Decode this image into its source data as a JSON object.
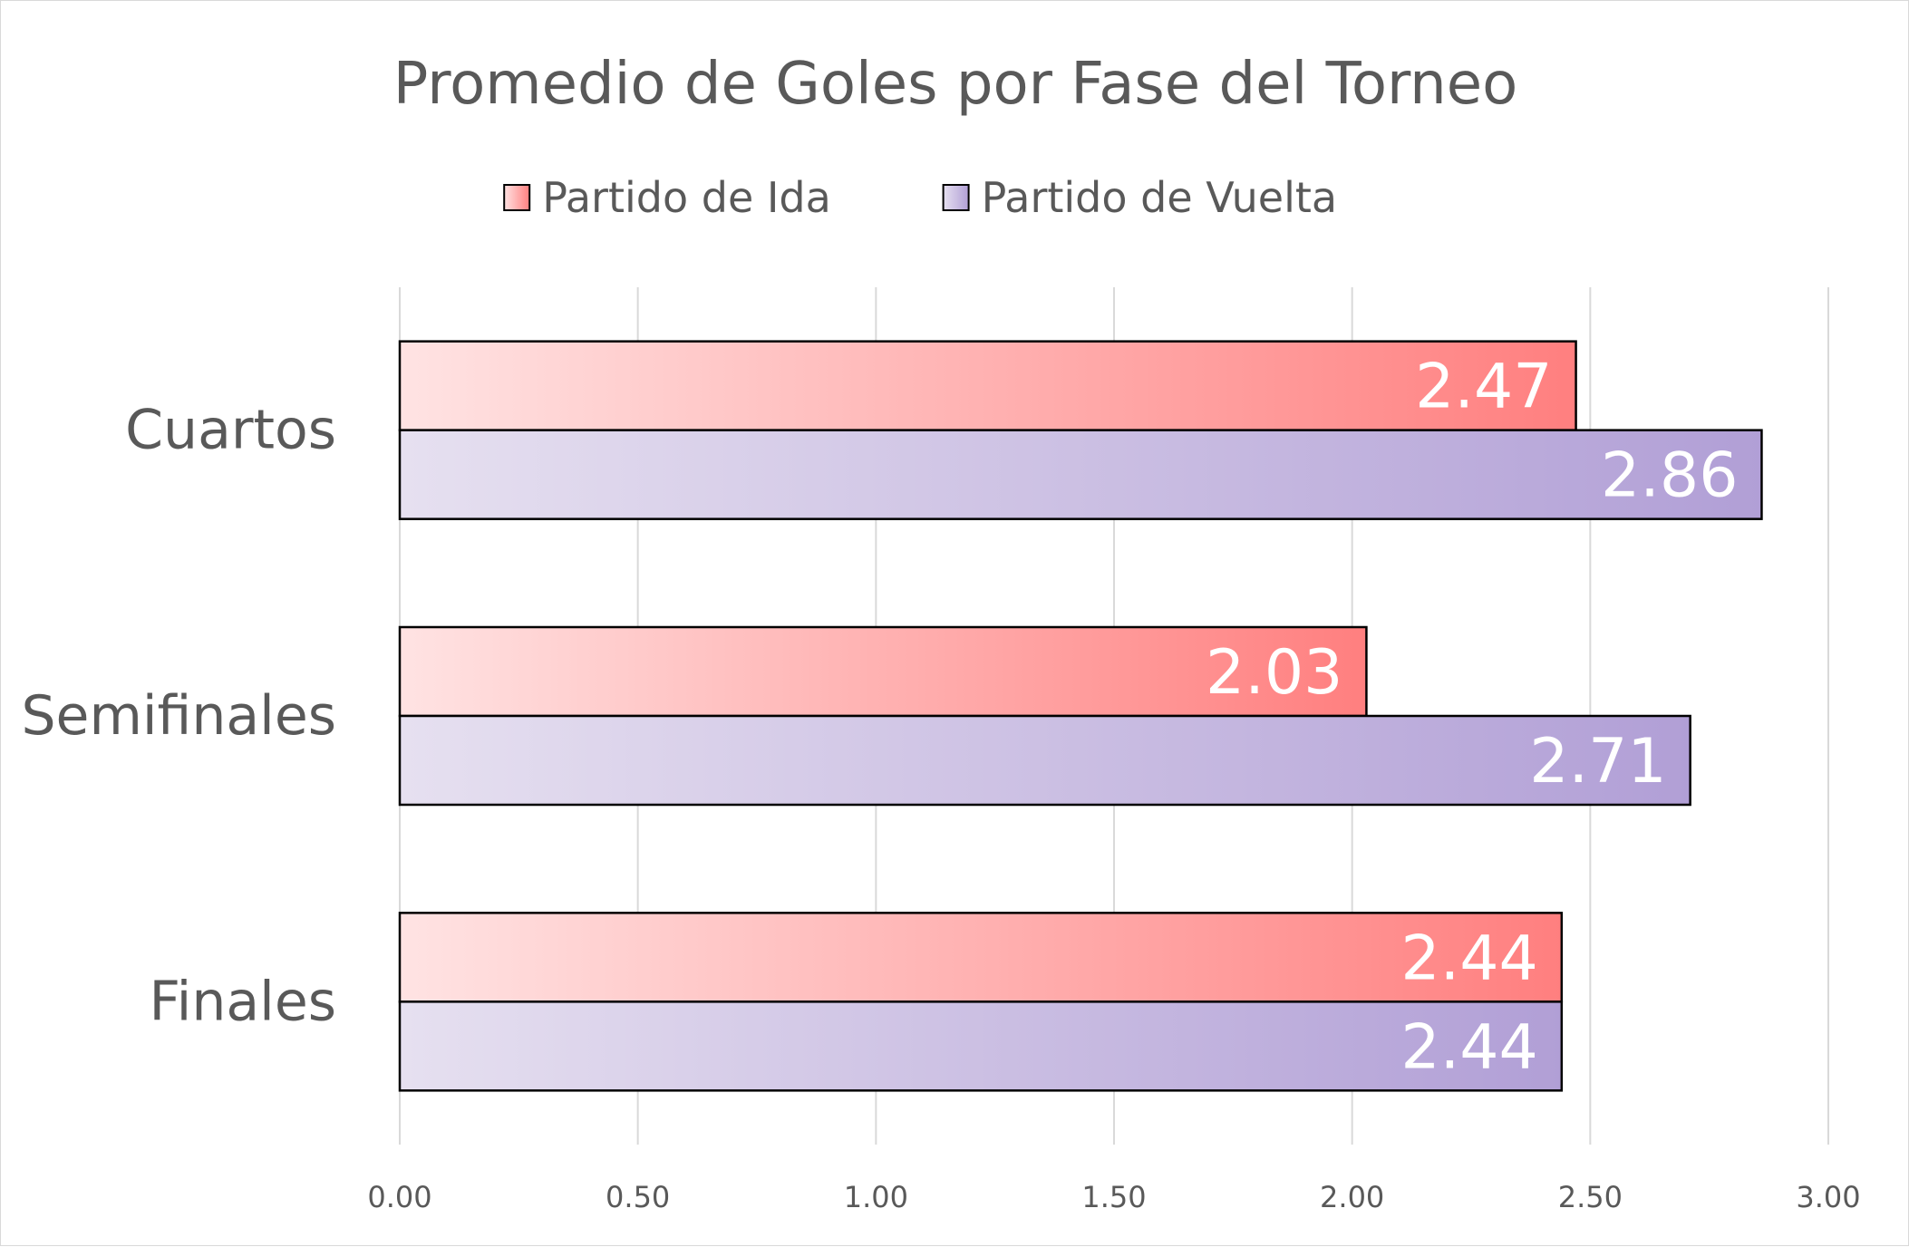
{
  "chart_data": {
    "type": "bar",
    "orientation": "horizontal",
    "title": "Promedio de Goles por Fase del Torneo",
    "categories": [
      "Cuartos",
      "Semifinales",
      "Finales"
    ],
    "series": [
      {
        "name": "Partido de Ida",
        "values": [
          2.47,
          2.03,
          2.44
        ],
        "color_start": "#ffe3e3",
        "color_end": "#ff7f7f",
        "legend_color": "#ff9d9d"
      },
      {
        "name": "Partido de Vuelta",
        "values": [
          2.86,
          2.71,
          2.44
        ],
        "color_start": "#e6e0f0",
        "color_end": "#b19fd6",
        "legend_color": "#c4b6e2"
      }
    ],
    "xlim": [
      0,
      3
    ],
    "x_ticks": [
      "0.00",
      "0.50",
      "1.00",
      "1.50",
      "2.00",
      "2.50",
      "3.00"
    ],
    "x_tick_values": [
      0,
      0.5,
      1,
      1.5,
      2,
      2.5,
      3
    ],
    "data_labels": true,
    "grid": true,
    "legend_position": "top"
  }
}
